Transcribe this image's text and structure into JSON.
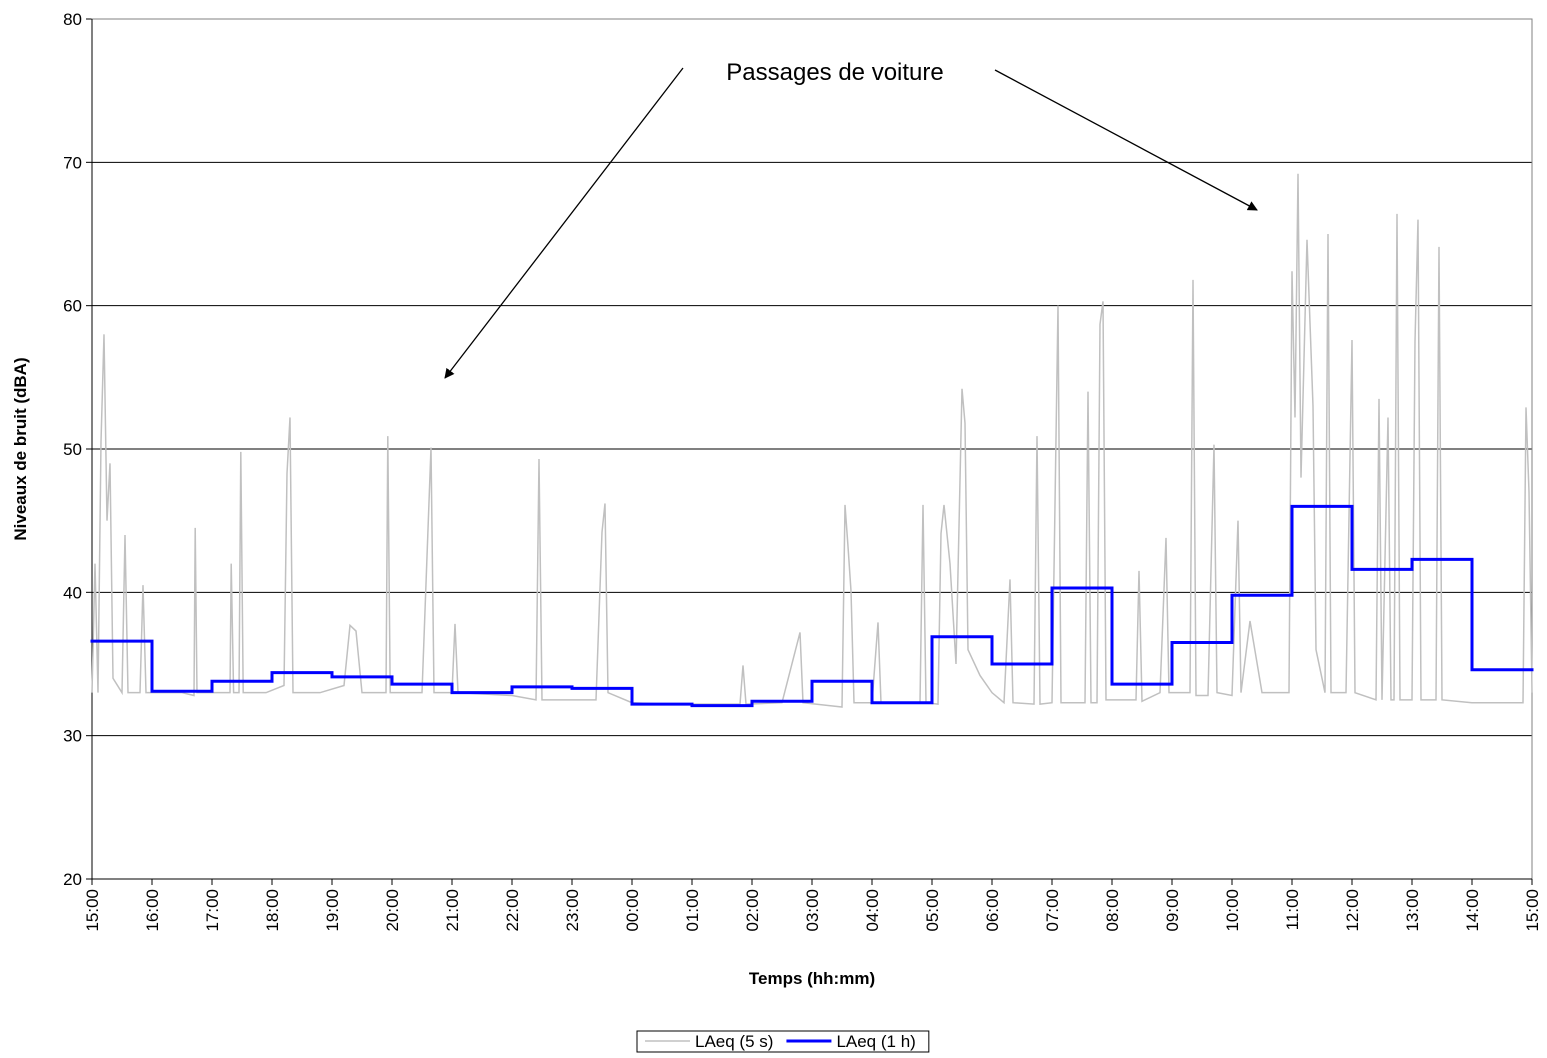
{
  "chart_data": {
    "type": "line",
    "annotation": "Passages de voiture",
    "xlabel": "Temps (hh:mm)",
    "ylabel": "Niveaux de bruit (dBA)",
    "xlim": [
      0,
      24
    ],
    "xticks": [
      {
        "value": 0,
        "label": "15:00"
      },
      {
        "value": 1,
        "label": "16:00"
      },
      {
        "value": 2,
        "label": "17:00"
      },
      {
        "value": 3,
        "label": "18:00"
      },
      {
        "value": 4,
        "label": "19:00"
      },
      {
        "value": 5,
        "label": "20:00"
      },
      {
        "value": 6,
        "label": "21:00"
      },
      {
        "value": 7,
        "label": "22:00"
      },
      {
        "value": 8,
        "label": "23:00"
      },
      {
        "value": 9,
        "label": "00:00"
      },
      {
        "value": 10,
        "label": "01:00"
      },
      {
        "value": 11,
        "label": "02:00"
      },
      {
        "value": 12,
        "label": "03:00"
      },
      {
        "value": 13,
        "label": "04:00"
      },
      {
        "value": 14,
        "label": "05:00"
      },
      {
        "value": 15,
        "label": "06:00"
      },
      {
        "value": 16,
        "label": "07:00"
      },
      {
        "value": 17,
        "label": "08:00"
      },
      {
        "value": 18,
        "label": "09:00"
      },
      {
        "value": 19,
        "label": "10:00"
      },
      {
        "value": 20,
        "label": "11:00"
      },
      {
        "value": 21,
        "label": "12:00"
      },
      {
        "value": 22,
        "label": "13:00"
      },
      {
        "value": 23,
        "label": "14:00"
      },
      {
        "value": 24,
        "label": "15:00"
      }
    ],
    "ylim": [
      20,
      80
    ],
    "yticks": [
      20,
      30,
      40,
      50,
      60,
      70,
      80
    ],
    "grid": true,
    "legend": "bottom",
    "series": [
      {
        "name": "LAeq (5 s)",
        "color": "#c0c0c0",
        "step": false,
        "x": [
          0,
          0.05,
          0.1,
          0.15,
          0.2,
          0.25,
          0.3,
          0.35,
          0.5,
          0.55,
          0.6,
          0.8,
          0.85,
          0.9,
          1.2,
          1.5,
          1.7,
          1.72,
          1.75,
          2.3,
          2.32,
          2.36,
          2.45,
          2.48,
          2.52,
          2.9,
          3.2,
          3.25,
          3.3,
          3.35,
          3.8,
          4.2,
          4.3,
          4.4,
          4.5,
          4.9,
          4.93,
          4.97,
          5.5,
          5.65,
          5.7,
          6,
          6.05,
          6.1,
          7,
          7.4,
          7.45,
          7.5,
          8.4,
          8.5,
          8.55,
          8.6,
          9,
          9.5,
          10,
          10.5,
          10.8,
          10.85,
          10.9,
          11.5,
          11.8,
          11.85,
          12.5,
          12.55,
          12.6,
          12.65,
          12.7,
          13,
          13.1,
          13.15,
          13.8,
          13.85,
          13.9,
          14.1,
          14.15,
          14.2,
          14.3,
          14.4,
          14.5,
          14.55,
          14.6,
          14.8,
          15,
          15.2,
          15.3,
          15.35,
          15.7,
          15.75,
          15.8,
          16,
          16.1,
          16.15,
          16.55,
          16.6,
          16.65,
          16.75,
          16.8,
          16.85,
          16.9,
          17.4,
          17.45,
          17.5,
          17.8,
          17.9,
          17.95,
          18.3,
          18.35,
          18.4,
          18.6,
          18.7,
          18.75,
          19,
          19.1,
          19.15,
          19.3,
          19.5,
          19.95,
          20,
          20.05,
          20.1,
          20.15,
          20.25,
          20.35,
          20.4,
          20.55,
          20.6,
          20.65,
          20.9,
          21,
          21.05,
          21.4,
          21.45,
          21.5,
          21.6,
          21.65,
          21.7,
          21.75,
          21.8,
          22,
          22.05,
          22.1,
          22.15,
          22.4,
          22.45,
          22.5,
          23,
          23.5,
          23.85,
          23.9,
          23.95,
          24
        ],
        "values": [
          33,
          42,
          33,
          50.5,
          58,
          45,
          49,
          34,
          33,
          44,
          33,
          33,
          40.5,
          33,
          33,
          33,
          32.8,
          44.5,
          33,
          33,
          42,
          33,
          33,
          49.8,
          33,
          33,
          33.5,
          48.3,
          52.2,
          33,
          33,
          33.5,
          37.7,
          37.3,
          33,
          33,
          50.9,
          33,
          33,
          50.1,
          33,
          33,
          37.8,
          33,
          32.8,
          32.5,
          49.3,
          32.5,
          32.5,
          44.2,
          46.2,
          33,
          32.3,
          32.2,
          32.2,
          32.2,
          32.2,
          34.9,
          32.2,
          32.3,
          37.2,
          32.3,
          32,
          46.1,
          43.2,
          40.1,
          32.3,
          32.3,
          37.9,
          32.3,
          32.3,
          46.1,
          32.3,
          32.2,
          44.1,
          46.1,
          42,
          35,
          54.2,
          51.8,
          36,
          34.2,
          33,
          32.3,
          40.9,
          32.3,
          32.2,
          50.9,
          32.2,
          32.3,
          60,
          32.3,
          32.3,
          54,
          32.3,
          32.3,
          58.7,
          60.3,
          32.5,
          32.5,
          41.5,
          32.4,
          33,
          43.8,
          33,
          33,
          61.8,
          32.8,
          32.8,
          50.3,
          33,
          32.8,
          45,
          33,
          38,
          33,
          33,
          62.4,
          52.2,
          69.2,
          48,
          64.6,
          53,
          36,
          33,
          65,
          33,
          33,
          57.6,
          33,
          32.5,
          53.5,
          32.5,
          52.2,
          32.5,
          32.5,
          66.4,
          32.5,
          32.5,
          57.5,
          66,
          32.5,
          32.5,
          64.1,
          32.5,
          32.3,
          32.3,
          32.3,
          52.9,
          47,
          33
        ]
      },
      {
        "name": "LAeq (1 h)",
        "color": "#0000ff",
        "step": true,
        "x": [
          0,
          1,
          2,
          3,
          4,
          5,
          6,
          7,
          8,
          9,
          10,
          11,
          12,
          13,
          14,
          15,
          16,
          17,
          18,
          19,
          20,
          21,
          22,
          23
        ],
        "values": [
          36.6,
          33.1,
          33.8,
          34.4,
          34.1,
          33.6,
          33.0,
          33.4,
          33.3,
          32.2,
          32.1,
          32.4,
          33.8,
          32.3,
          36.9,
          35.0,
          40.3,
          33.6,
          36.5,
          39.8,
          46.0,
          41.6,
          42.3,
          34.6
        ]
      }
    ]
  }
}
